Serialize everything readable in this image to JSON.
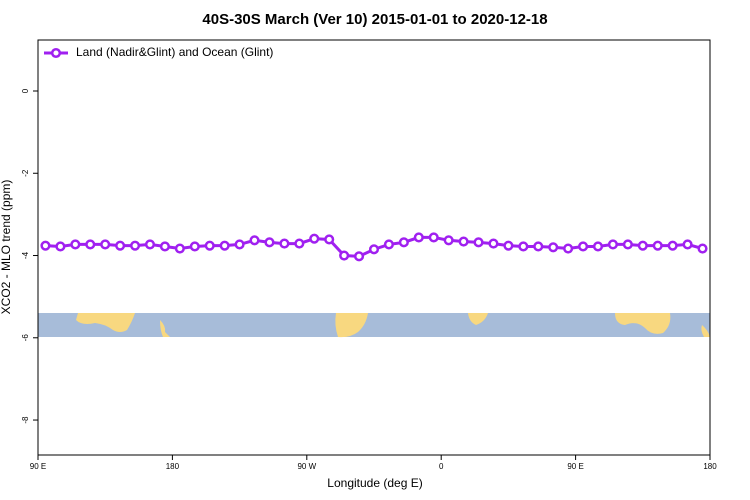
{
  "chart_data": {
    "type": "line",
    "title": "40S-30S March (Ver 10)   2015-01-01 to 2020-12-18",
    "x_label": "Longitude (deg E)",
    "y_label": "XCO2 - MLO trend (ppm)",
    "xlim": [
      90,
      540
    ],
    "xticks": [
      {
        "value": 90,
        "label": "90 E"
      },
      180,
      {
        "value": 270,
        "label": "90 W"
      },
      {
        "value": 360,
        "label": "0"
      },
      {
        "value": 450,
        "label": "90 E"
      },
      {
        "value": 540,
        "label": "180"
      }
    ],
    "ylim": [
      -8.85,
      1.24
    ],
    "yticks": [
      0,
      -2,
      -4,
      -6,
      -8
    ],
    "legend_position": "top-left",
    "series": [
      {
        "name": "Land (Nadir&Glint) and Ocean (Glint)",
        "color": "#a020f0",
        "x": [
          95,
          105,
          115,
          125,
          135,
          145,
          155,
          165,
          175,
          185,
          195,
          205,
          215,
          225,
          235,
          245,
          255,
          265,
          275,
          285,
          295,
          305,
          315,
          325,
          335,
          345,
          355,
          365,
          375,
          385,
          395,
          405,
          415,
          425,
          435,
          445,
          455,
          465,
          475,
          485,
          495,
          505,
          515,
          525,
          535
        ],
        "values": [
          -3.76,
          -3.78,
          -3.73,
          -3.73,
          -3.73,
          -3.76,
          -3.76,
          -3.73,
          -3.78,
          -3.83,
          -3.78,
          -3.76,
          -3.76,
          -3.73,
          -3.63,
          -3.68,
          -3.71,
          -3.71,
          -3.59,
          -3.61,
          -4.0,
          -4.02,
          -3.85,
          -3.73,
          -3.68,
          -3.56,
          -3.56,
          -3.63,
          -3.66,
          -3.68,
          -3.71,
          -3.76,
          -3.78,
          -3.78,
          -3.8,
          -3.83,
          -3.78,
          -3.78,
          -3.73,
          -3.73,
          -3.76,
          -3.76,
          -3.76,
          -3.73,
          -3.83
        ]
      }
    ]
  }
}
